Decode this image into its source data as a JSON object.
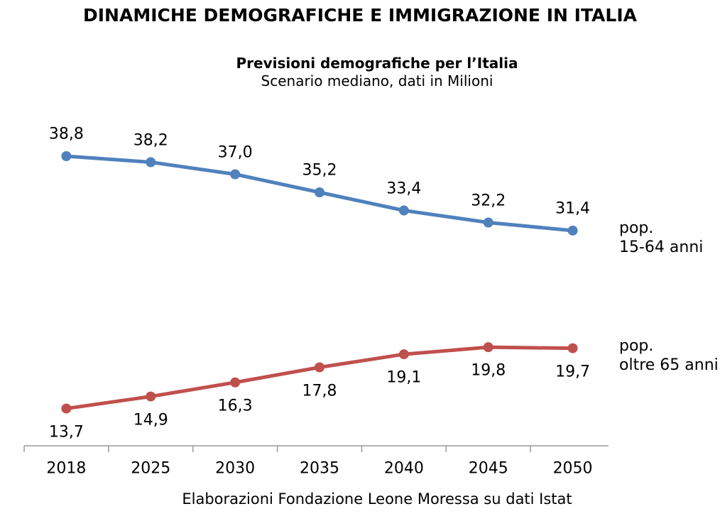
{
  "header": {
    "title": "DINAMICHE DEMOGRAFICHE E IMMIGRAZIONE IN ITALIA"
  },
  "chart_data": {
    "type": "line",
    "title": "Previsioni demografiche per l’Italia",
    "subtitle": "Scenario mediano, dati in Milioni",
    "categories": [
      "2018",
      "2025",
      "2030",
      "2035",
      "2040",
      "2045",
      "2050"
    ],
    "series": [
      {
        "name": "pop. 15-64 anni",
        "legend": "pop.\n15-64 anni",
        "values": [
          38.8,
          38.2,
          37.0,
          35.2,
          33.4,
          32.2,
          31.4
        ],
        "color": "#4F81BD",
        "label_position": "above"
      },
      {
        "name": "pop. oltre 65 anni",
        "legend": "pop.\noltre 65 anni",
        "values": [
          13.7,
          14.9,
          16.3,
          17.8,
          19.1,
          19.8,
          19.7
        ],
        "color": "#C0504D",
        "label_position": "below"
      }
    ],
    "decimal_separator": ",",
    "ylim": [
      10,
      40
    ],
    "grid": false,
    "legend_position": "right",
    "axis_color": "#9A9A9A"
  },
  "footer": {
    "source": "Elaborazioni Fondazione Leone Moressa su dati Istat"
  }
}
